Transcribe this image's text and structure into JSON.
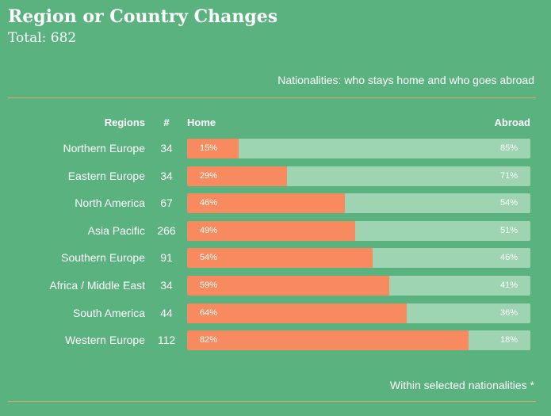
{
  "header": {
    "title": "Region or Country Changes",
    "total": "Total: 682"
  },
  "subtitle": "Nationalities: who stays home and who goes abroad",
  "footnote": "Within selected nationalities *",
  "colors": {
    "background": "#5ab27f",
    "home": "#f78a5e",
    "abroad": "#9ed4b2",
    "divider": "#d9a77c"
  },
  "chart_data": {
    "type": "bar",
    "orientation": "horizontal",
    "stacked": true,
    "normalized": true,
    "title": "Region or Country Changes",
    "column_headers": {
      "regions": "Regions",
      "count": "#",
      "home": "Home",
      "abroad": "Abroad"
    },
    "categories": [
      "Northern Europe",
      "Eastern Europe",
      "North America",
      "Asia Pacific",
      "Southern Europe",
      "Africa / Middle East",
      "South America",
      "Western Europe"
    ],
    "counts": [
      "34",
      "34",
      "67",
      "266",
      "91",
      "34",
      "44",
      "112"
    ],
    "series": [
      {
        "name": "Home",
        "values": [
          15,
          29,
          46,
          49,
          54,
          59,
          64,
          82
        ],
        "labels": [
          "15%",
          "29%",
          "46%",
          "49%",
          "54%",
          "59%",
          "64%",
          "82%"
        ]
      },
      {
        "name": "Abroad",
        "values": [
          85,
          71,
          54,
          51,
          46,
          41,
          36,
          18
        ],
        "labels": [
          "85%",
          "71%",
          "54%",
          "51%",
          "46%",
          "41%",
          "36%",
          "18%"
        ]
      }
    ],
    "xlim": [
      0,
      100
    ],
    "legend": "none",
    "grid": false
  }
}
